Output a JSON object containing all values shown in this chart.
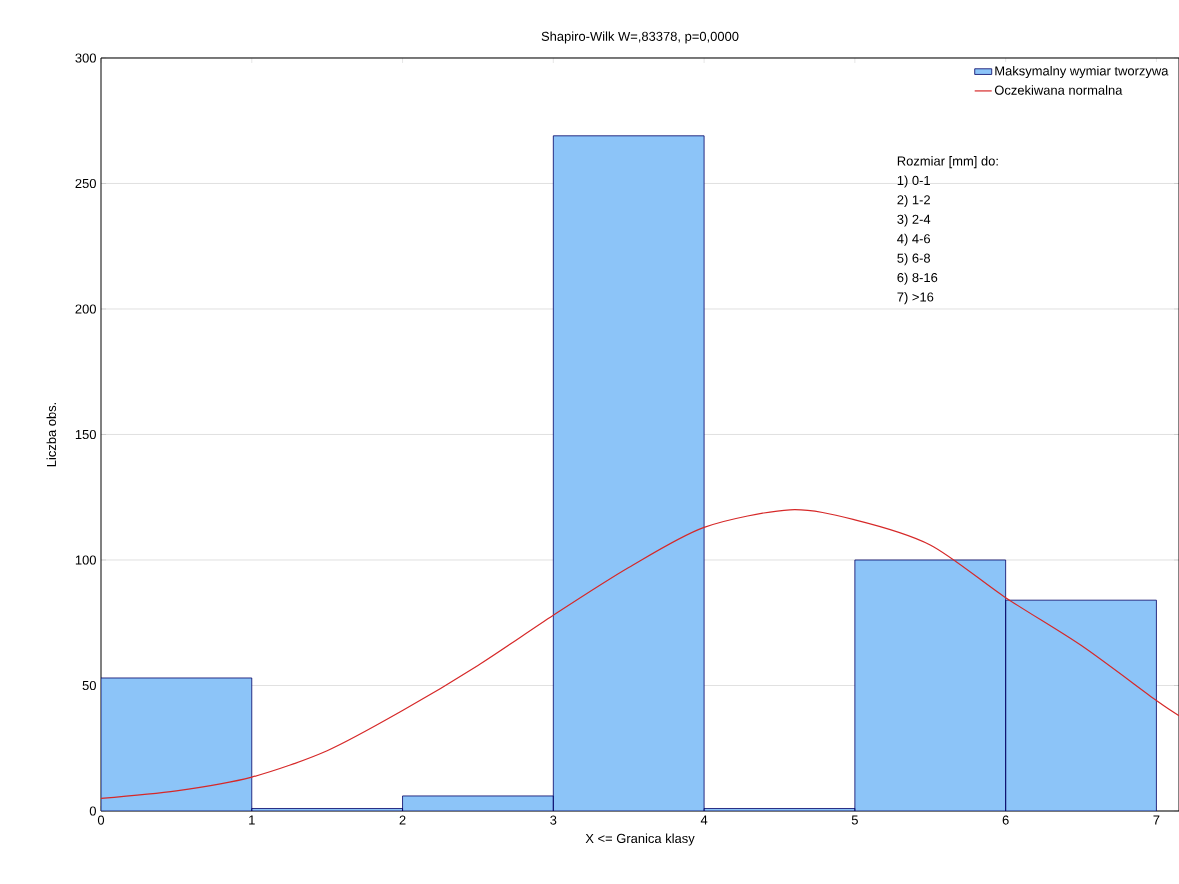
{
  "chart_data": {
    "type": "histogram",
    "title": "Shapiro-Wilk W=,83378, p=0,0000",
    "xlabel": "X <= Granica klasy",
    "ylabel": "Liczba obs.",
    "bins": [
      0,
      1,
      2,
      3,
      4,
      5,
      6,
      7
    ],
    "series": [
      {
        "name": "Maksymalny wymiar tworzywa",
        "color": "#8cc4f8",
        "values": [
          53,
          1,
          6,
          269,
          1,
          100,
          84
        ]
      },
      {
        "type": "line",
        "name": "Oczekiwana normalna",
        "color": "#d62828",
        "x": [
          0,
          0.5,
          1,
          1.5,
          2,
          2.5,
          3,
          3.5,
          4,
          4.57,
          5,
          5.5,
          6,
          6.5,
          7,
          7.15
        ],
        "values": [
          5,
          8,
          13.5,
          24,
          40,
          58,
          78,
          97,
          113,
          120,
          116,
          106,
          85,
          66,
          44,
          38
        ]
      }
    ],
    "xlim": [
      0,
      7.15
    ],
    "ylim": [
      0,
      300
    ],
    "xticks": [
      0,
      1,
      2,
      3,
      4,
      5,
      6,
      7
    ],
    "yticks": [
      0,
      50,
      100,
      150,
      200,
      250,
      300
    ],
    "grid": "y",
    "legend": "top right",
    "annotations": [
      "Rozmiar [mm] do:",
      "1) 0-1",
      "2) 1-2",
      "3) 2-4",
      "4) 4-6",
      "5) 6-8",
      "6) 8-16",
      "7) >16"
    ]
  }
}
